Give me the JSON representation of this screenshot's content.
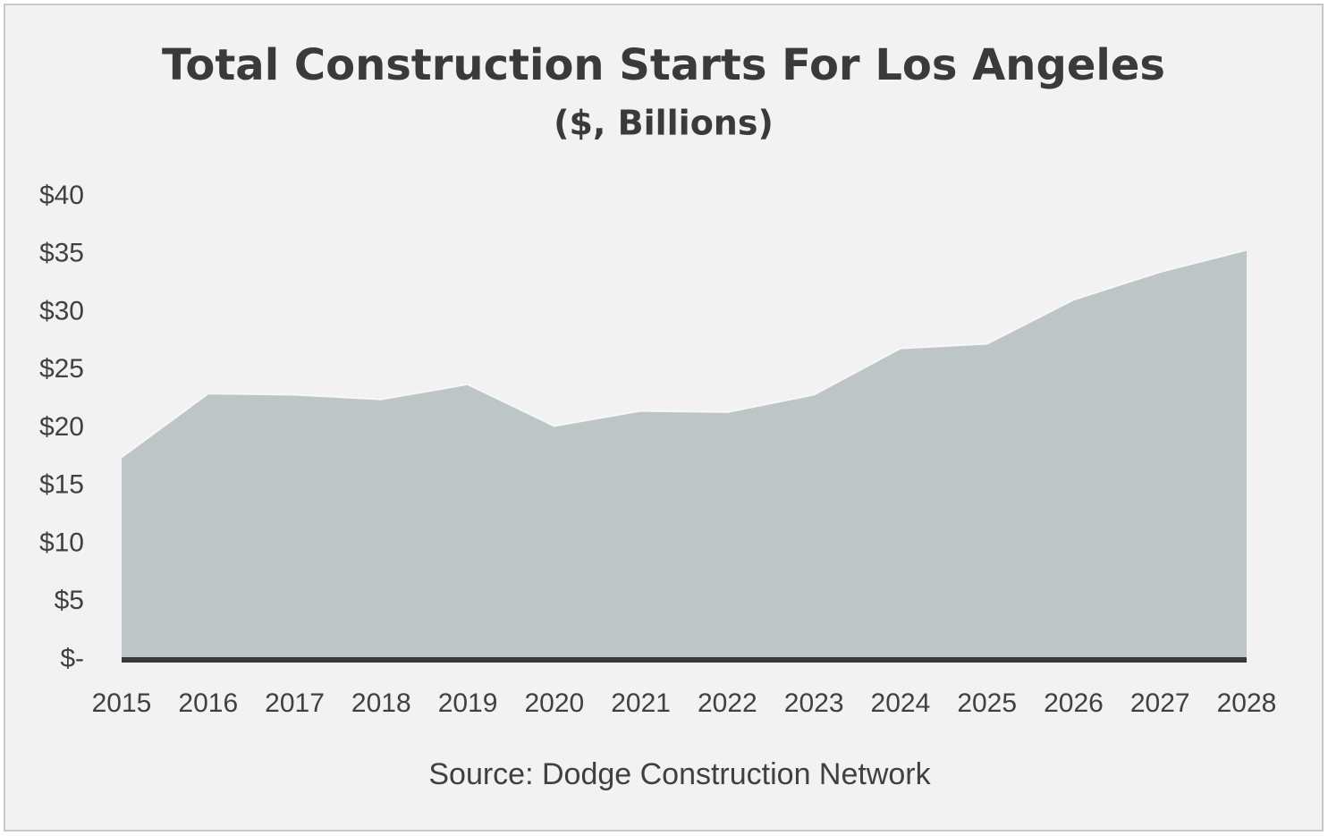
{
  "chart_data": {
    "type": "area",
    "title": "Total Construction Starts For Los Angeles",
    "subtitle": "($, Billions)",
    "source": "Source: Dodge Construction Network",
    "categories": [
      "2015",
      "2016",
      "2017",
      "2018",
      "2019",
      "2020",
      "2021",
      "2022",
      "2023",
      "2024",
      "2025",
      "2026",
      "2027",
      "2028"
    ],
    "values": [
      17.5,
      23.0,
      22.9,
      22.5,
      23.8,
      20.2,
      21.5,
      21.4,
      22.9,
      26.9,
      27.3,
      31.1,
      33.5,
      35.4
    ],
    "color": "#bdc5c6",
    "ylim": [
      0,
      40
    ],
    "yticks": [
      {
        "value": 0,
        "label": "$-"
      },
      {
        "value": 5,
        "label": "$5"
      },
      {
        "value": 10,
        "label": "$10"
      },
      {
        "value": 15,
        "label": "$15"
      },
      {
        "value": 20,
        "label": "$20"
      },
      {
        "value": 25,
        "label": "$25"
      },
      {
        "value": 30,
        "label": "$30"
      },
      {
        "value": 35,
        "label": "$35"
      },
      {
        "value": 40,
        "label": "$40"
      }
    ],
    "grid": false
  }
}
